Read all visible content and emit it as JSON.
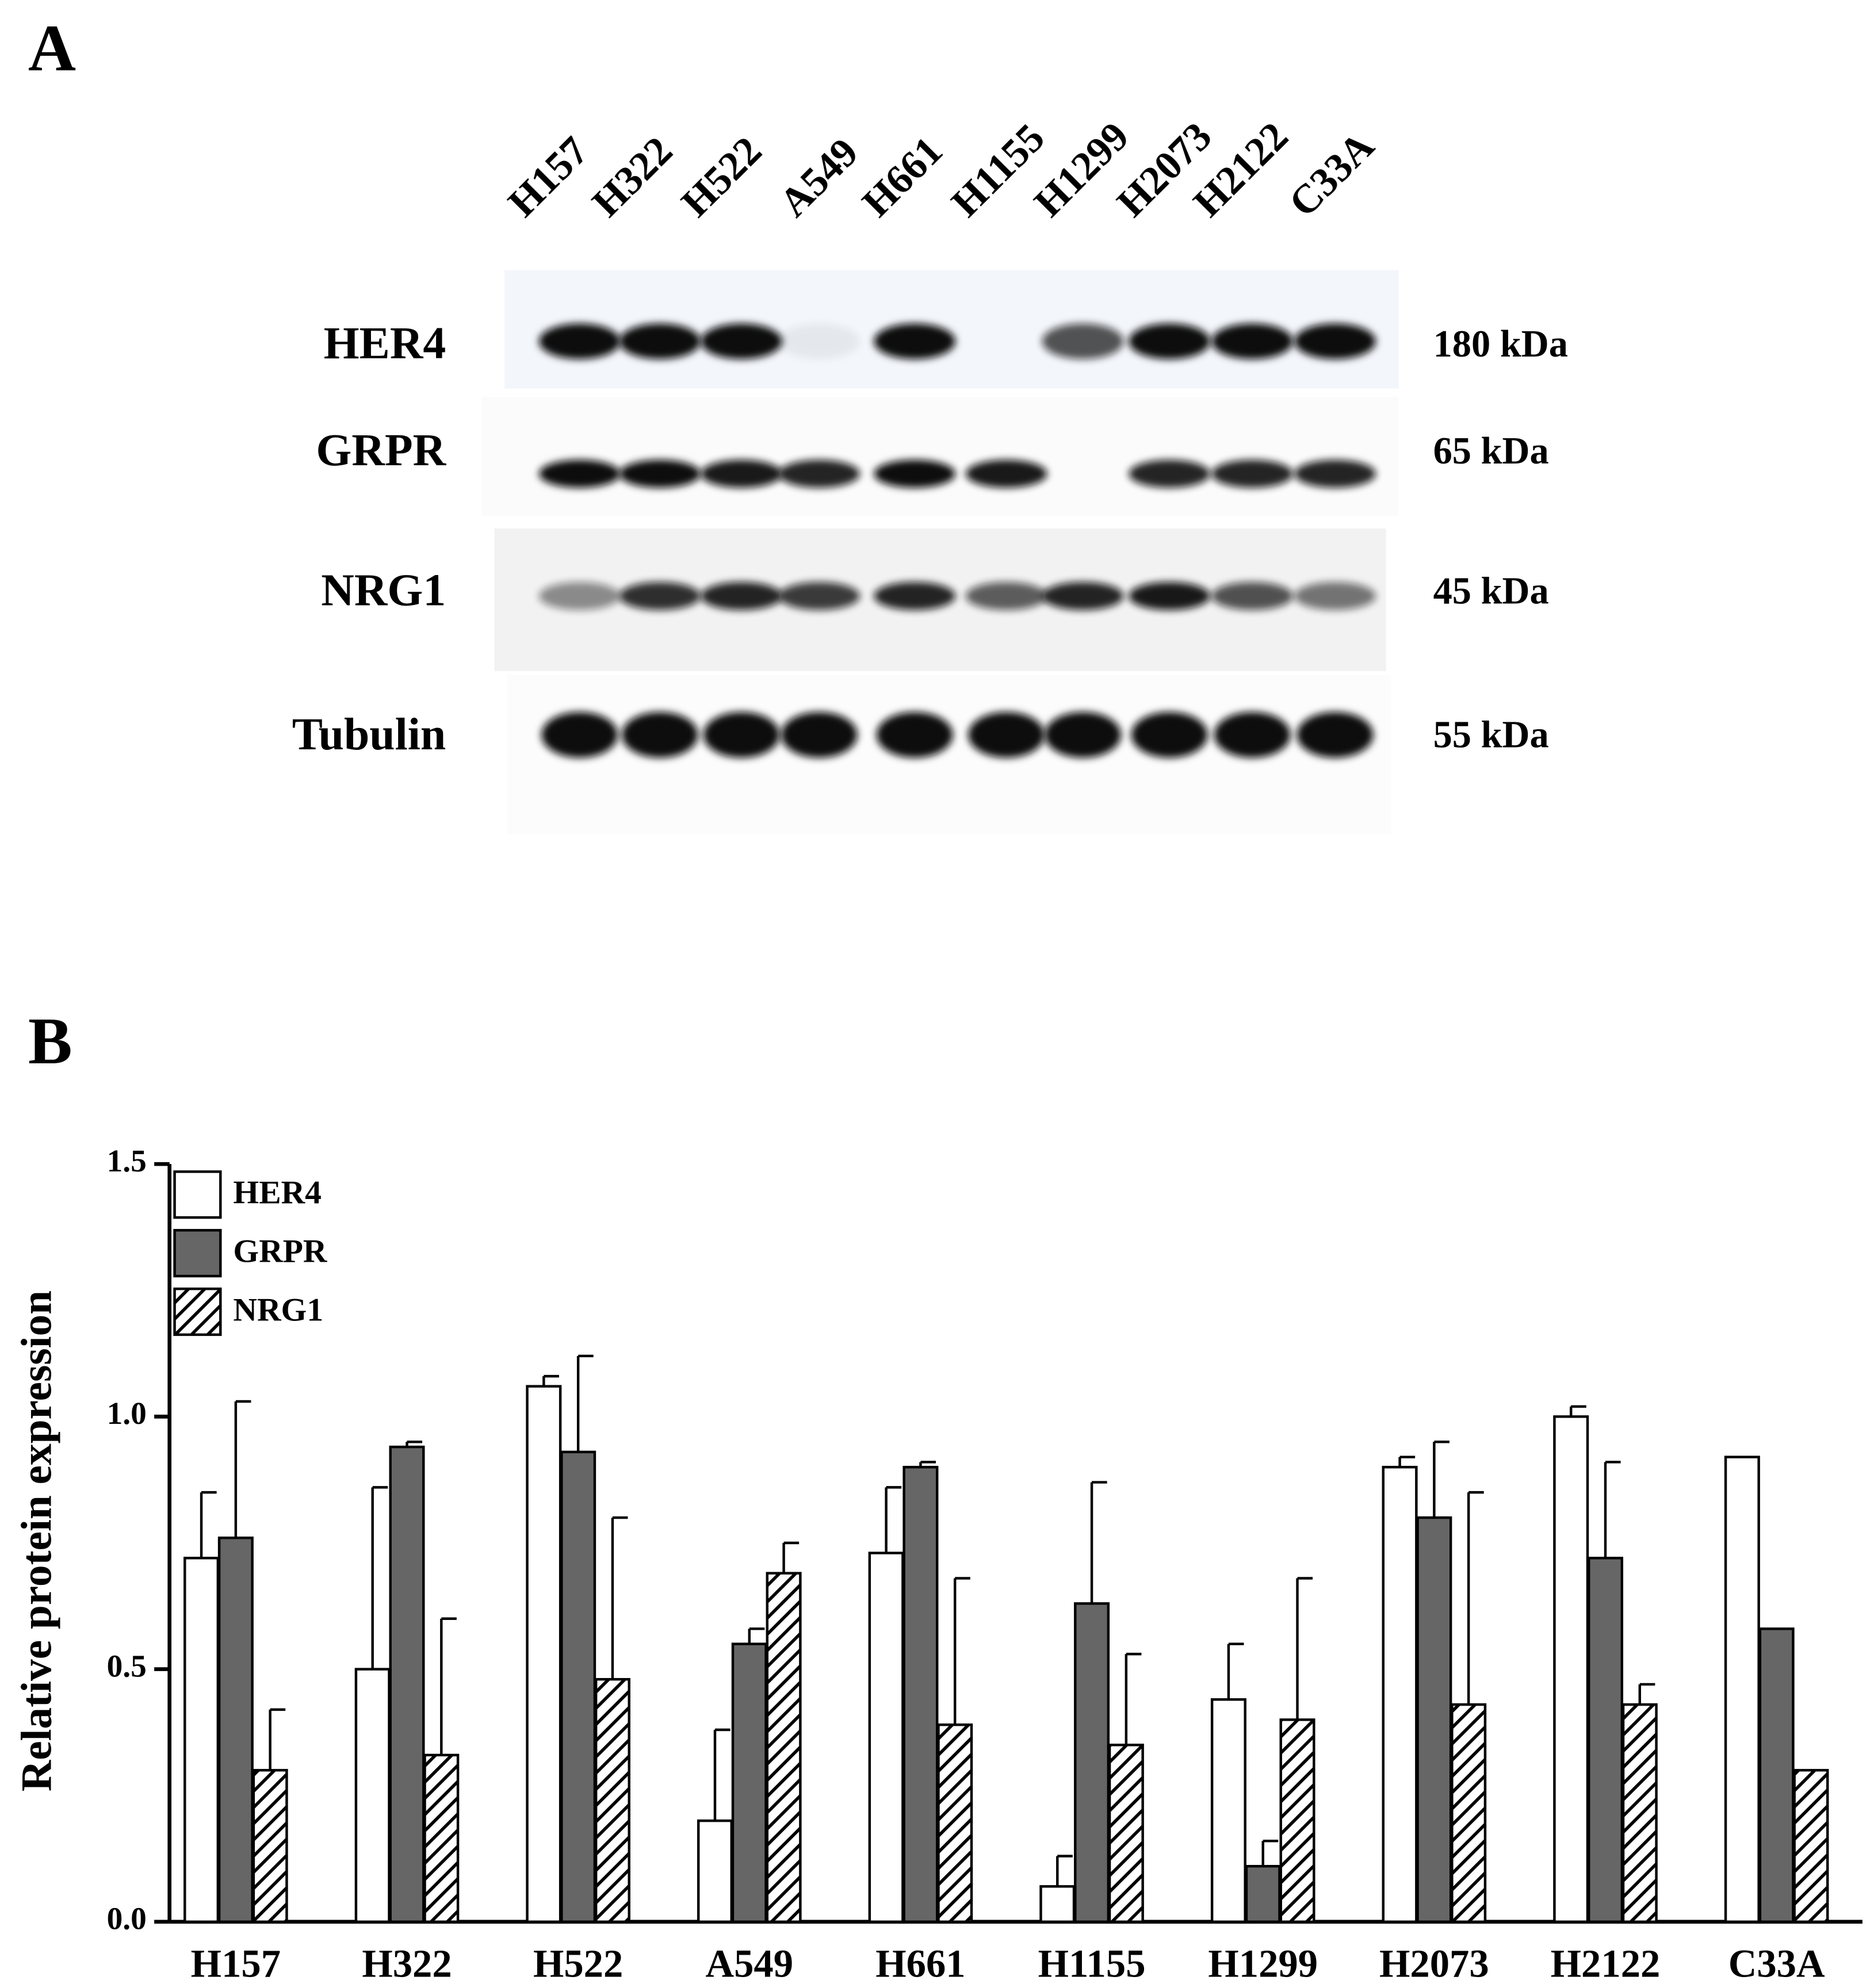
{
  "panel_a": {
    "label": "A",
    "lanes": [
      "H157",
      "H322",
      "H522",
      "A549",
      "H661",
      "H1155",
      "H1299",
      "H2073",
      "H2122",
      "C33A"
    ],
    "blots": [
      {
        "name": "HER4",
        "size": "180 kDa"
      },
      {
        "name": "GRPR",
        "size": "65 kDa"
      },
      {
        "name": "NRG1",
        "size": "45 kDa"
      },
      {
        "name": "Tubulin",
        "size": "55 kDa"
      }
    ]
  },
  "panel_b": {
    "label": "B"
  },
  "chart_data": {
    "type": "bar",
    "y_label": "Relative protein expression",
    "categories": [
      "H157",
      "H322",
      "H522",
      "A549",
      "H661",
      "H1155",
      "H1299",
      "H2073",
      "H2122",
      "C33A"
    ],
    "series": [
      {
        "name": "HER4",
        "color": "#ffffff",
        "values": [
          0.72,
          0.5,
          1.06,
          0.2,
          0.73,
          0.07,
          0.44,
          0.9,
          1.0,
          0.92
        ],
        "errors": [
          0.13,
          0.36,
          0.02,
          0.18,
          0.13,
          0.06,
          0.11,
          0.02,
          0.02,
          null
        ]
      },
      {
        "name": "GRPR",
        "color": "#666666",
        "values": [
          0.76,
          0.94,
          0.93,
          0.55,
          0.9,
          0.63,
          0.11,
          0.8,
          0.72,
          0.58
        ],
        "errors": [
          0.27,
          0.01,
          0.19,
          0.03,
          0.01,
          0.24,
          0.05,
          0.15,
          0.19,
          null
        ]
      },
      {
        "name": "NRG1",
        "color": "#ffffff",
        "pattern": "hatch",
        "values": [
          0.3,
          0.33,
          0.48,
          0.69,
          0.39,
          0.35,
          0.4,
          0.43,
          0.43,
          0.3
        ],
        "errors": [
          0.12,
          0.27,
          0.32,
          0.06,
          0.29,
          0.18,
          0.28,
          0.42,
          0.04,
          null
        ]
      }
    ],
    "ylim": [
      0,
      1.5
    ],
    "yticks": [
      {
        "value": 0,
        "label": "0.0"
      },
      0.5,
      {
        "value": 1,
        "label": "1.0"
      },
      1.5
    ],
    "legend": "upper left"
  }
}
